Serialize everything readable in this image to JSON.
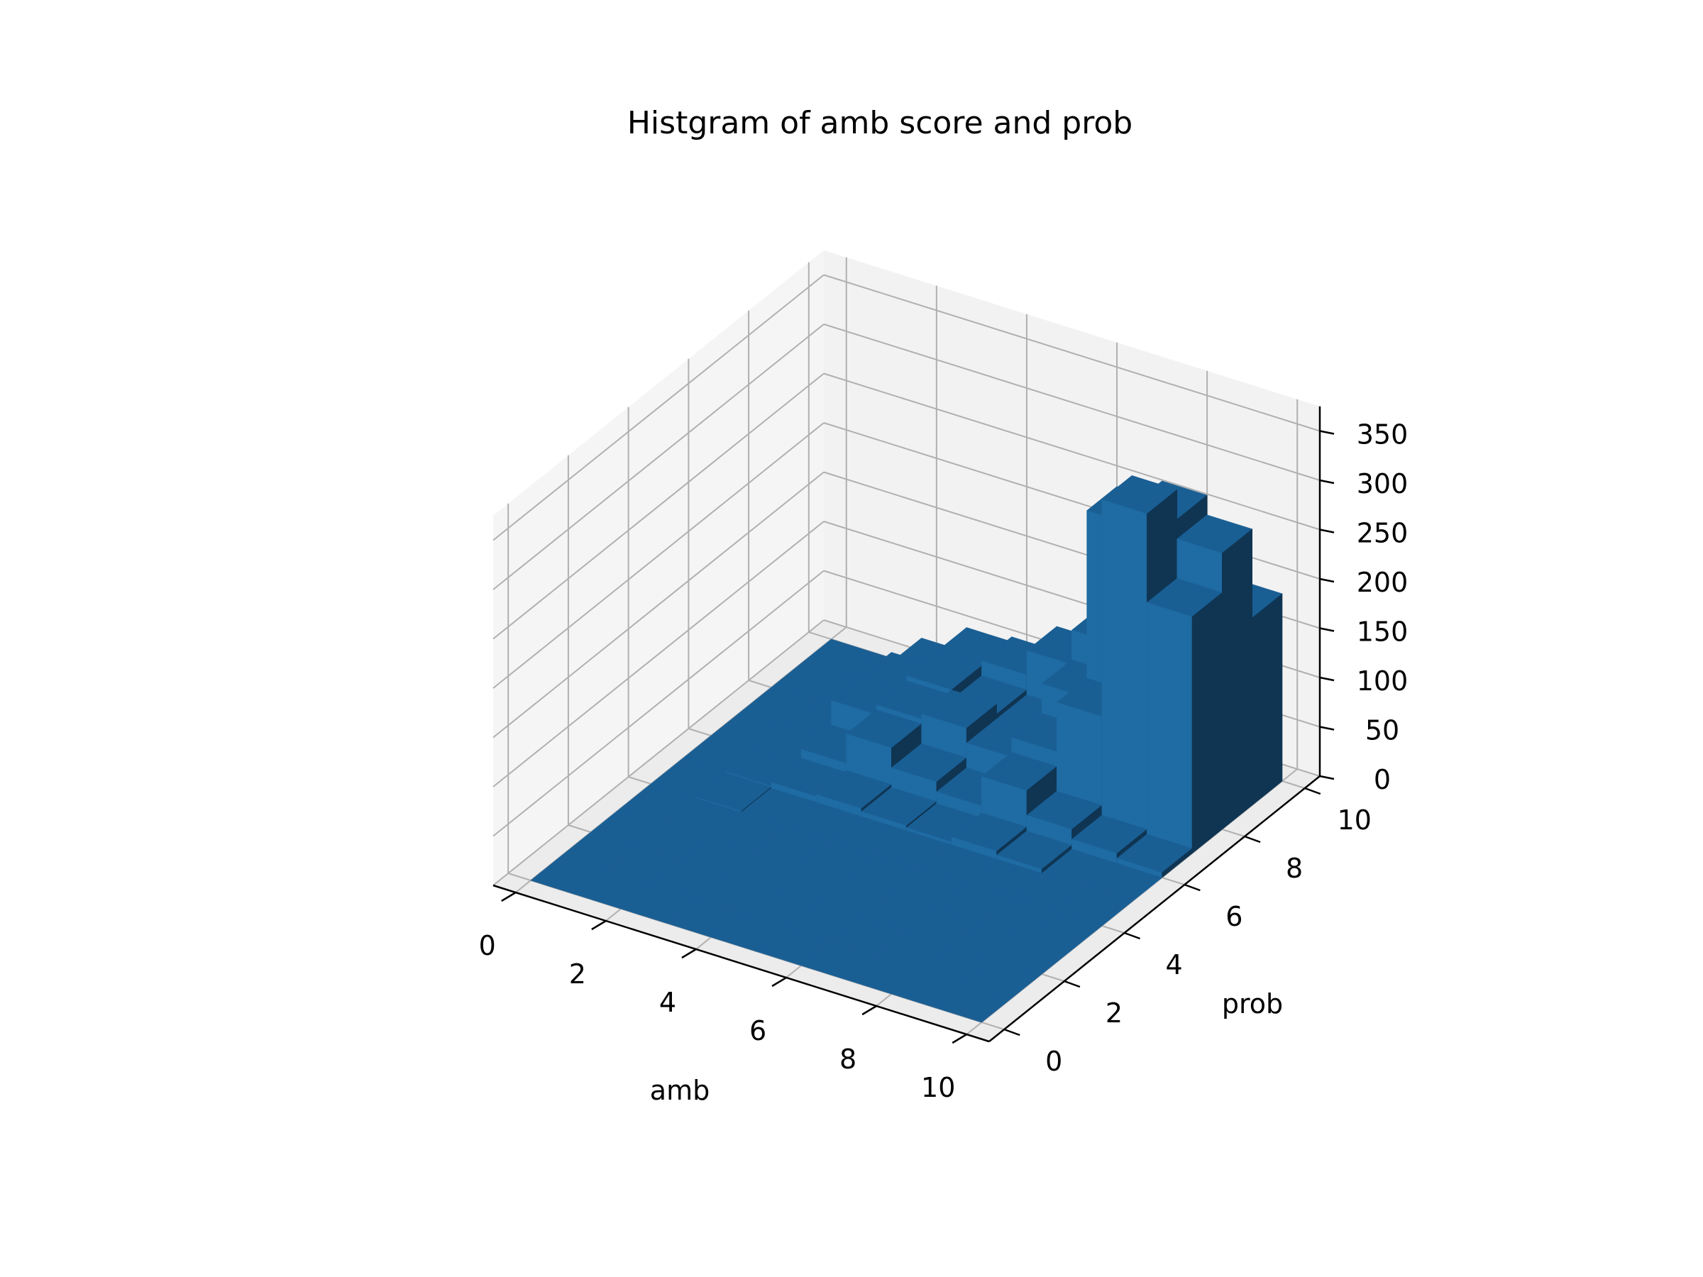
{
  "chart_data": {
    "type": "bar3d",
    "title": "Histgram of amb score and prob",
    "xlabel": "amb",
    "ylabel": "prob",
    "zlabel": "",
    "x_ticks": [
      "0",
      "2",
      "4",
      "6",
      "8",
      "10"
    ],
    "y_ticks": [
      "0",
      "2",
      "4",
      "6",
      "8",
      "10"
    ],
    "z_ticks": [
      "0",
      "50",
      "100",
      "150",
      "200",
      "250",
      "300",
      "350"
    ],
    "xlim": [
      0,
      10
    ],
    "ylim": [
      0,
      10
    ],
    "zlim": [
      0,
      370
    ],
    "bin_width": 1,
    "grid": true,
    "bar_color": "#1f77b4",
    "pane_color": "#f2f2f2",
    "grid_color": "#b0b0b0",
    "counts": [
      [
        0,
        0,
        0,
        0,
        0,
        0,
        0,
        0,
        0,
        0
      ],
      [
        0,
        0,
        0,
        0,
        0,
        0,
        0,
        0,
        0,
        0
      ],
      [
        0,
        0,
        0,
        0,
        0,
        0,
        0,
        0,
        0,
        0
      ],
      [
        0,
        0,
        0,
        0,
        0,
        0,
        0,
        0,
        0,
        0
      ],
      [
        0,
        1,
        0,
        0,
        0,
        0,
        0,
        0,
        0,
        0
      ],
      [
        0,
        2,
        6,
        8,
        5,
        3,
        8,
        4,
        0,
        0
      ],
      [
        0,
        0,
        15,
        45,
        25,
        15,
        45,
        20,
        10,
        5
      ],
      [
        0,
        0,
        40,
        50,
        55,
        40,
        60,
        110,
        330,
        240
      ],
      [
        0,
        0,
        40,
        55,
        45,
        40,
        90,
        280,
        300,
        280
      ],
      [
        0,
        0,
        30,
        55,
        60,
        85,
        120,
        230,
        210,
        190
      ]
    ]
  }
}
